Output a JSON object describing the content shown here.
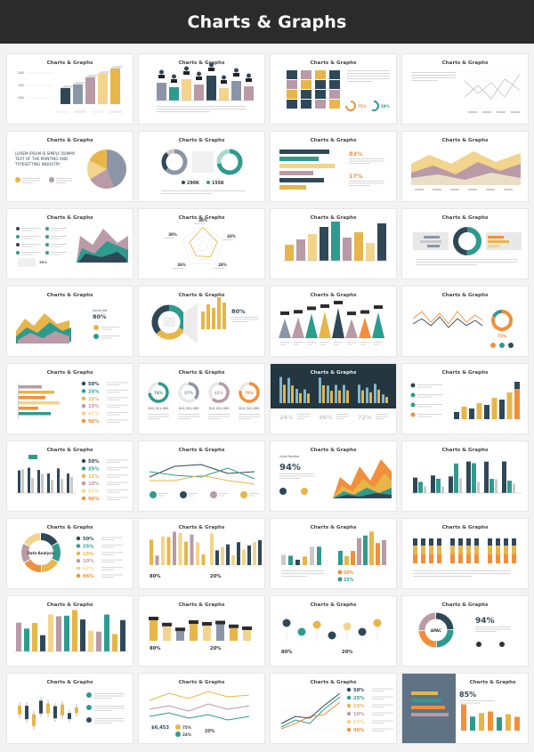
{
  "header": {
    "title": "Charts & Graphs"
  },
  "slide_title": "Charts & Graphs",
  "colors": {
    "navy": "#2f4858",
    "teal": "#2e9b8e",
    "gold": "#e7b54a",
    "mauve": "#b99aa6",
    "sand": "#f2d48c",
    "orange": "#f28f3b",
    "slate": "#8a96a8",
    "grey": "#c9c9c9",
    "dark_panel": "#243640",
    "blue_panel": "#5f7385"
  },
  "slides": [
    {
      "id": 1,
      "kind": "bars3d",
      "labels": [
        "20K",
        "15K",
        "10K"
      ]
    },
    {
      "id": 2,
      "kind": "bars_dots"
    },
    {
      "id": 3,
      "kind": "stack_cols",
      "pcts": [
        "75%",
        "59%"
      ]
    },
    {
      "id": 4,
      "kind": "lines_text"
    },
    {
      "id": 5,
      "kind": "pie_text",
      "big_text": "LOREM IPSUM IS SIMPLY DUMMY TEXT OF THE PRINTING AND TYPESETTING INDUSTRY"
    },
    {
      "id": 6,
      "kind": "donuts_two",
      "values": [
        "290K",
        "155K"
      ]
    },
    {
      "id": 7,
      "kind": "hbars_pct",
      "pcts": [
        "83%",
        "17%"
      ]
    },
    {
      "id": 8,
      "kind": "area_stack"
    },
    {
      "id": 9,
      "kind": "mountain_3d",
      "pct": "30%"
    },
    {
      "id": 10,
      "kind": "radar",
      "pcts": [
        "38%",
        "43%",
        "28%",
        "26%",
        "30%"
      ]
    },
    {
      "id": 11,
      "kind": "bars_color"
    },
    {
      "id": 12,
      "kind": "donut_center"
    },
    {
      "id": 13,
      "kind": "surface_3d",
      "pct": "80%"
    },
    {
      "id": 14,
      "kind": "half_donut_bars",
      "pct": "80%"
    },
    {
      "id": 15,
      "kind": "spikes"
    },
    {
      "id": 16,
      "kind": "zigzag_donut",
      "value": "73%"
    },
    {
      "id": 17,
      "kind": "hbars_list",
      "pcts": [
        "50%",
        "25%",
        "15%",
        "10%",
        "67%",
        "96%"
      ]
    },
    {
      "id": 18,
      "kind": "four_donuts",
      "pcts": [
        "74%",
        "37%",
        "62%",
        "78%"
      ],
      "money": [
        "$12,321,000",
        "$12,321,000",
        "$12,321,000",
        "$12,321,000"
      ]
    },
    {
      "id": 19,
      "kind": "dark_bars",
      "pcts": [
        "24%",
        "36%",
        "72%"
      ]
    },
    {
      "id": 20,
      "kind": "bars_legend"
    },
    {
      "id": 21,
      "kind": "bars_list",
      "pcts": [
        "50%",
        "25%",
        "15%",
        "10%",
        "67%",
        "96%"
      ]
    },
    {
      "id": 22,
      "kind": "lines_icons"
    },
    {
      "id": 23,
      "kind": "waves",
      "pct": "94%"
    },
    {
      "id": 24,
      "kind": "grouped_bars"
    },
    {
      "id": 25,
      "kind": "ring_list",
      "center": "Data Analysis",
      "pcts": [
        "50%",
        "25%",
        "15%",
        "10%",
        "67%",
        "96%"
      ]
    },
    {
      "id": 26,
      "kind": "bars_two_panels",
      "pcts": [
        "80%",
        "20%"
      ]
    },
    {
      "id": 27,
      "kind": "bars_split",
      "pcts": [
        "50%",
        "25%"
      ]
    },
    {
      "id": 28,
      "kind": "stacked_small"
    },
    {
      "id": 29,
      "kind": "many_bars"
    },
    {
      "id": 30,
      "kind": "bars_labels",
      "pcts": [
        "80%",
        "20%"
      ]
    },
    {
      "id": 31,
      "kind": "dots_chart",
      "pcts": [
        "80%",
        "20%"
      ]
    },
    {
      "id": 32,
      "kind": "donut_apac",
      "center": "APAC",
      "pct": "94%"
    },
    {
      "id": 33,
      "kind": "candles"
    },
    {
      "id": 34,
      "kind": "lines_bubbles",
      "values": [
        "$6,453",
        "75%",
        "24%",
        "20%"
      ]
    },
    {
      "id": 35,
      "kind": "lines_list",
      "pcts": [
        "50%",
        "25%",
        "15%",
        "10%",
        "67%",
        "96%"
      ]
    },
    {
      "id": 36,
      "kind": "blue_panel",
      "pct": "85%"
    }
  ]
}
